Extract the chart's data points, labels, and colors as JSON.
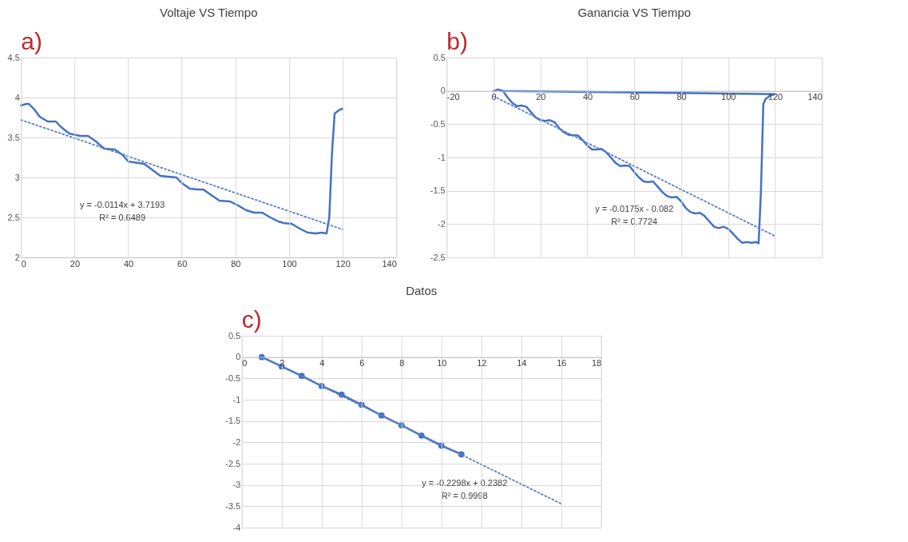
{
  "chart_data": [
    {
      "type": "line",
      "title": "Voltaje VS Tiempo",
      "annotations": [
        "a)",
        "y = -0.0114x + 3.7193",
        "R² = 0.6489"
      ],
      "xlim": [
        0,
        140
      ],
      "xticks": [
        0,
        20,
        40,
        60,
        80,
        100,
        120,
        140
      ],
      "ylim": [
        2,
        4.5
      ],
      "yticks": [
        2,
        2.5,
        3,
        3.5,
        4,
        4.5
      ],
      "grid": true,
      "series": [
        {
          "color": "#4472c4",
          "line_style": "solid",
          "marker": "none",
          "x": [
            0,
            2,
            3,
            5,
            7,
            10,
            13,
            15,
            18,
            22,
            25,
            28,
            31,
            35,
            38,
            40,
            44,
            46,
            48,
            52,
            55,
            58,
            60,
            63,
            66,
            68,
            71,
            74,
            78,
            81,
            84,
            87,
            90,
            93,
            96,
            98,
            101,
            104,
            107,
            110,
            112,
            114,
            115,
            116,
            117,
            119,
            120
          ],
          "values": [
            3.9,
            3.92,
            3.92,
            3.85,
            3.76,
            3.7,
            3.7,
            3.63,
            3.55,
            3.52,
            3.52,
            3.45,
            3.36,
            3.35,
            3.28,
            3.2,
            3.18,
            3.17,
            3.12,
            3.02,
            3.01,
            3.0,
            2.93,
            2.86,
            2.85,
            2.85,
            2.78,
            2.71,
            2.7,
            2.65,
            2.59,
            2.56,
            2.56,
            2.5,
            2.45,
            2.43,
            2.42,
            2.36,
            2.31,
            2.3,
            2.31,
            2.3,
            2.5,
            3.3,
            3.8,
            3.85,
            3.86
          ]
        },
        {
          "color": "#5b7fc4",
          "line_style": "dotted",
          "marker": "none",
          "x": [
            0,
            120
          ],
          "values": [
            3.72,
            2.35
          ]
        }
      ]
    },
    {
      "type": "line",
      "title": "Ganancia VS Tiempo",
      "annotations": [
        "b)",
        "y = -0.0175x - 0.082",
        "R² = 0.7724"
      ],
      "xlim": [
        -20,
        140
      ],
      "xticks": [
        -20,
        0,
        20,
        40,
        60,
        80,
        100,
        120,
        140
      ],
      "ylim": [
        -2.5,
        0.5
      ],
      "yticks": [
        -2.5,
        -2,
        -1.5,
        -1,
        -0.5,
        0,
        0.5
      ],
      "grid": true,
      "series": [
        {
          "color": "#4472c4",
          "line_style": "solid",
          "marker": "none",
          "x": [
            0,
            2,
            4,
            6,
            8,
            10,
            12,
            14,
            16,
            18,
            20,
            22,
            24,
            26,
            28,
            30,
            32,
            36,
            38,
            40,
            42,
            44,
            46,
            48,
            50,
            52,
            54,
            56,
            58,
            60,
            62,
            64,
            66,
            68,
            70,
            72,
            74,
            76,
            78,
            80,
            82,
            84,
            86,
            88,
            90,
            92,
            94,
            96,
            98,
            100,
            102,
            104,
            106,
            108,
            110,
            112,
            113,
            114,
            115,
            116,
            118,
            120,
            3
          ],
          "values": [
            0,
            0.02,
            0.0,
            -0.1,
            -0.18,
            -0.23,
            -0.22,
            -0.24,
            -0.32,
            -0.4,
            -0.44,
            -0.45,
            -0.44,
            -0.47,
            -0.56,
            -0.62,
            -0.66,
            -0.67,
            -0.74,
            -0.82,
            -0.88,
            -0.88,
            -0.87,
            -0.92,
            -1.0,
            -1.08,
            -1.13,
            -1.12,
            -1.13,
            -1.22,
            -1.3,
            -1.36,
            -1.37,
            -1.36,
            -1.44,
            -1.52,
            -1.58,
            -1.6,
            -1.59,
            -1.66,
            -1.76,
            -1.82,
            -1.84,
            -1.83,
            -1.88,
            -1.96,
            -2.04,
            -2.06,
            -2.04,
            -2.07,
            -2.14,
            -2.22,
            -2.28,
            -2.27,
            -2.28,
            -2.27,
            -2.29,
            -1.5,
            -0.2,
            -0.12,
            -0.07,
            -0.05,
            0.0
          ]
        },
        {
          "color": "#5b7fc4",
          "line_style": "dotted",
          "marker": "none",
          "x": [
            0,
            120
          ],
          "values": [
            -0.08,
            -2.18
          ]
        }
      ]
    },
    {
      "type": "line",
      "title": "Datos",
      "annotations": [
        "c)",
        "y = -0.2298x + 0.2382",
        "R² = 0.9998"
      ],
      "xlim": [
        0,
        18
      ],
      "xticks": [
        0,
        2,
        4,
        6,
        8,
        10,
        12,
        14,
        16,
        18
      ],
      "ylim": [
        -4,
        0.5
      ],
      "yticks": [
        -4,
        -3.5,
        -3,
        -2.5,
        -2,
        -1.5,
        -1,
        -0.5,
        0,
        0.5
      ],
      "grid": true,
      "series": [
        {
          "color": "#4472c4",
          "line_style": "solid",
          "marker": "circle",
          "x": [
            1,
            2,
            3,
            4,
            5,
            6,
            7,
            8,
            9,
            10,
            11
          ],
          "values": [
            0,
            -0.22,
            -0.44,
            -0.68,
            -0.88,
            -1.12,
            -1.37,
            -1.6,
            -1.84,
            -2.08,
            -2.28
          ]
        },
        {
          "color": "#5b7fc4",
          "line_style": "dotted",
          "marker": "none",
          "x": [
            1,
            16
          ],
          "values": [
            0.01,
            -3.44
          ]
        }
      ]
    }
  ]
}
